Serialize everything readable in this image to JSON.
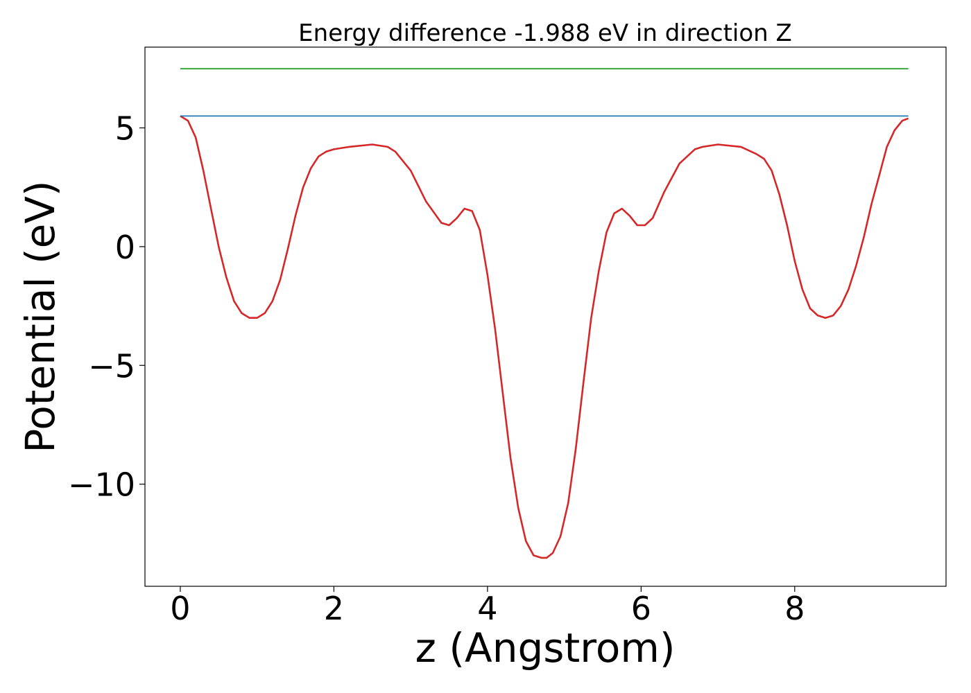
{
  "chart_data": {
    "type": "line",
    "title": "Energy difference -1.988 eV in direction Z",
    "xlabel": "z (Angstrom)",
    "ylabel": "Potential (eV)",
    "xlim": [
      -0.46,
      9.97
    ],
    "ylim": [
      -14.3,
      8.4
    ],
    "xticks": [
      0,
      2,
      4,
      6,
      8
    ],
    "yticks": [
      -10,
      -5,
      0,
      5
    ],
    "ytick_labels": [
      "−10",
      "−5",
      "0",
      "5"
    ],
    "grid": false,
    "series": [
      {
        "color": "#d62728",
        "x": [
          0,
          0.1,
          0.2,
          0.3,
          0.4,
          0.5,
          0.6,
          0.7,
          0.8,
          0.9,
          1.0,
          1.1,
          1.2,
          1.3,
          1.4,
          1.5,
          1.6,
          1.7,
          1.8,
          1.9,
          2.0,
          2.2,
          2.5,
          2.7,
          2.8,
          3.0,
          3.2,
          3.4,
          3.5,
          3.6,
          3.7,
          3.8,
          3.9,
          4.0,
          4.1,
          4.2,
          4.3,
          4.4,
          4.5,
          4.6,
          4.7,
          4.77,
          4.85,
          4.95,
          5.05,
          5.15,
          5.25,
          5.35,
          5.45,
          5.55,
          5.65,
          5.75,
          5.85,
          5.95,
          6.05,
          6.15,
          6.3,
          6.5,
          6.7,
          6.8,
          7.0,
          7.3,
          7.5,
          7.6,
          7.7,
          7.8,
          7.9,
          8.0,
          8.1,
          8.2,
          8.3,
          8.4,
          8.5,
          8.6,
          8.7,
          8.8,
          8.9,
          9.0,
          9.1,
          9.2,
          9.3,
          9.4,
          9.48
        ],
        "y": [
          5.5,
          5.3,
          4.6,
          3.2,
          1.6,
          0.0,
          -1.3,
          -2.3,
          -2.8,
          -3.0,
          -3.0,
          -2.8,
          -2.3,
          -1.4,
          -0.1,
          1.3,
          2.5,
          3.3,
          3.8,
          4.0,
          4.1,
          4.2,
          4.3,
          4.2,
          4.0,
          3.2,
          1.9,
          1.0,
          0.9,
          1.2,
          1.6,
          1.5,
          0.7,
          -1.2,
          -3.5,
          -6.2,
          -8.9,
          -11.0,
          -12.4,
          -13.0,
          -13.1,
          -13.1,
          -12.9,
          -12.2,
          -10.8,
          -8.5,
          -5.7,
          -3.0,
          -1.0,
          0.6,
          1.4,
          1.6,
          1.3,
          0.9,
          0.9,
          1.2,
          2.3,
          3.5,
          4.1,
          4.2,
          4.3,
          4.2,
          3.9,
          3.7,
          3.2,
          2.2,
          0.9,
          -0.6,
          -1.8,
          -2.6,
          -2.9,
          -3.0,
          -2.9,
          -2.5,
          -1.8,
          -0.8,
          0.4,
          1.8,
          3.0,
          4.2,
          4.9,
          5.3,
          5.4
        ]
      },
      {
        "color": "#1f77b4",
        "x": [
          0,
          9.48
        ],
        "y": [
          5.5,
          5.5
        ]
      },
      {
        "color": "#2ca02c",
        "x": [
          0,
          9.48
        ],
        "y": [
          7.49,
          7.49
        ]
      }
    ]
  }
}
